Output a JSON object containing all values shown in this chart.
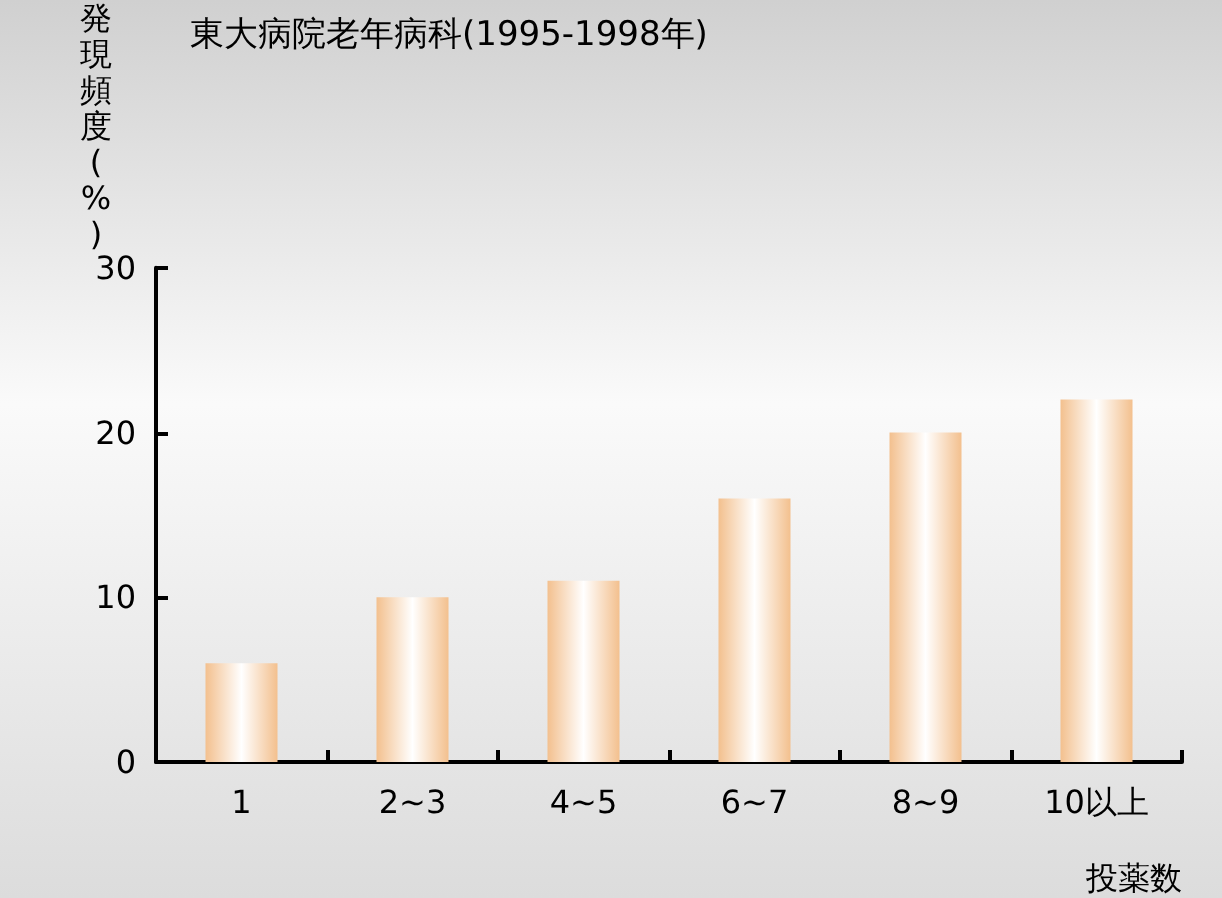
{
  "chart_data": {
    "type": "bar",
    "title": "東大病院老年病科(1995-1998年)",
    "ylabel": "発現頻度(%)",
    "xlabel": "投薬数",
    "categories": [
      "1",
      "2~3",
      "4~5",
      "6~7",
      "8~9",
      "10以上"
    ],
    "values": [
      6,
      10,
      11,
      16,
      20,
      22
    ],
    "color": "#f3c08e",
    "ylim": [
      0,
      30
    ],
    "yticks": [
      0,
      10,
      20,
      30
    ],
    "grid": false
  }
}
